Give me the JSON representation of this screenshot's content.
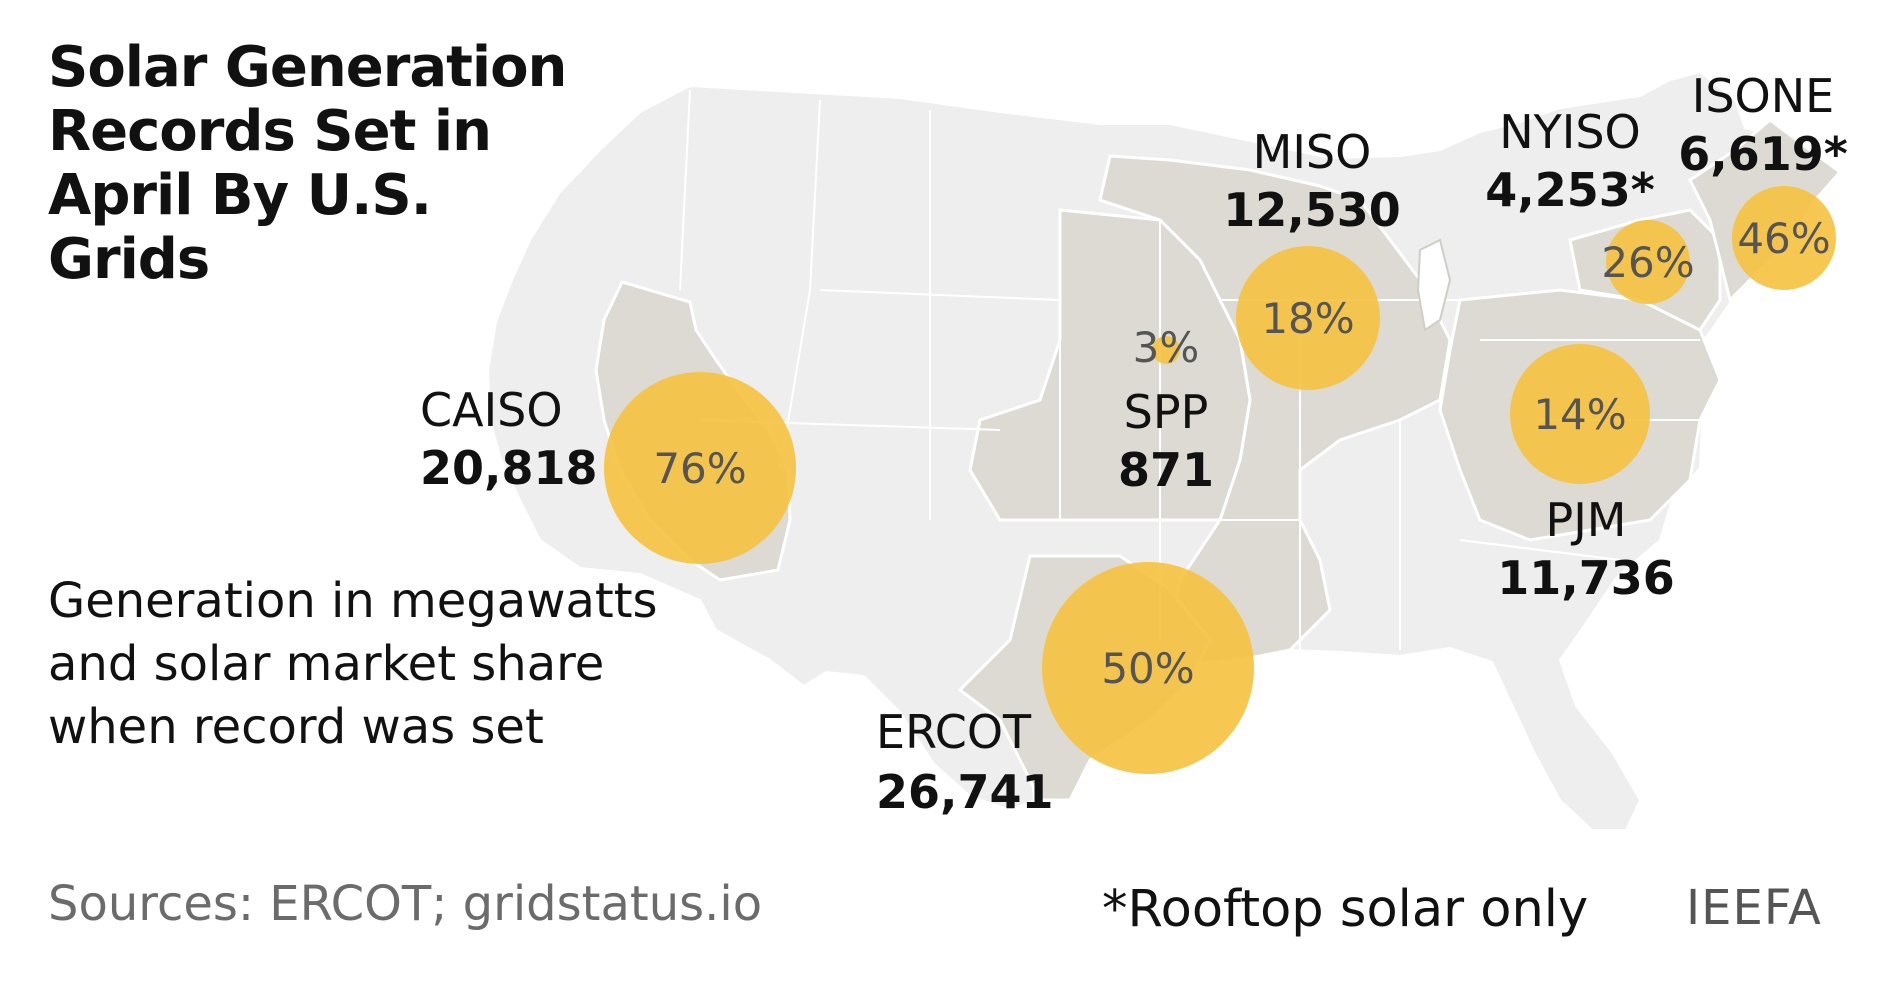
{
  "title": "Solar Generation Records Set in April By U.S. Grids",
  "subtitle": "Generation in megawatts and solar market share when record was set",
  "sources": "Sources: ERCOT; gridstatus.io",
  "footnote": "*Rooftop solar only",
  "brand": "IEEFA",
  "colors": {
    "bubble": "#f5c342",
    "grid_region": "#dcdad3",
    "non_grid_land": "#eeeeee",
    "borders": "#ffffff"
  },
  "grids": [
    {
      "id": "caiso",
      "name": "CAISO",
      "generation": "20,818",
      "share": "76%",
      "share_value": 76
    },
    {
      "id": "ercot",
      "name": "ERCOT",
      "generation": "26,741",
      "share": "50%",
      "share_value": 50
    },
    {
      "id": "miso",
      "name": "MISO",
      "generation": "12,530",
      "share": "18%",
      "share_value": 18
    },
    {
      "id": "spp",
      "name": "SPP",
      "generation": "871",
      "share": "3%",
      "share_value": 3
    },
    {
      "id": "pjm",
      "name": "PJM",
      "generation": "11,736",
      "share": "14%",
      "share_value": 14
    },
    {
      "id": "nyiso",
      "name": "NYISO",
      "generation": "4,253*",
      "share": "26%",
      "share_value": 26
    },
    {
      "id": "isone",
      "name": "ISONE",
      "generation": "6,619*",
      "share": "46%",
      "share_value": 46
    }
  ]
}
